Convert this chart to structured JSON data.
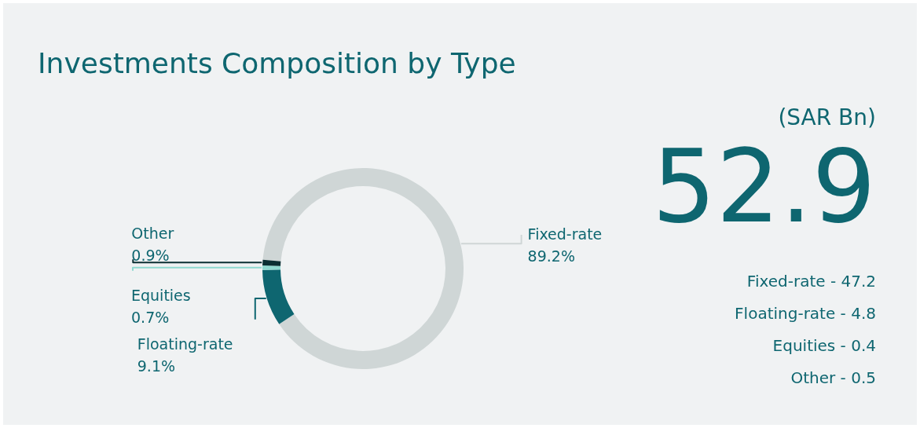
{
  "chart_data": {
    "type": "donut",
    "title": "Investments Composition by Type",
    "categories": [
      "Fixed-rate",
      "Floating-rate",
      "Equities",
      "Other"
    ],
    "values": [
      89.2,
      9.1,
      0.7,
      0.9
    ],
    "colors": [
      "#cfd6d6",
      "#0e6670",
      "#8fd9d0",
      "#0b2f33"
    ],
    "value_labels": [
      "89.2%",
      "9.1%",
      "0.7%",
      "0.9%"
    ],
    "annotations": [
      "(SAR Bn)",
      "52.9",
      "Fixed-rate - 47.2",
      "Floating-rate - 4.8",
      "Equities - 0.4",
      "Other - 0.5"
    ]
  }
}
